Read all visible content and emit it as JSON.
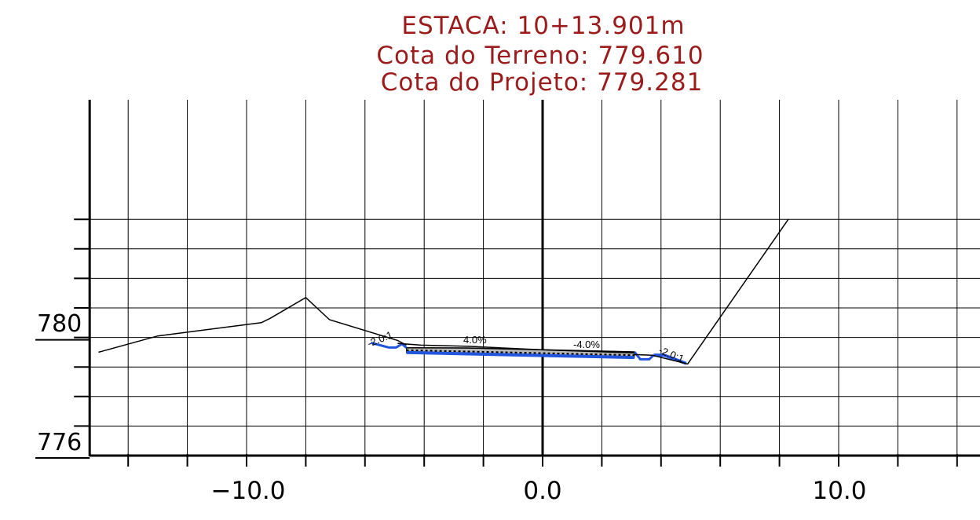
{
  "header": {
    "station_line": "ESTACA: 10+13.901m",
    "terrain_line": "Cota do Terreno:  779.610",
    "project_line": "Cota do Projeto: 779.281"
  },
  "x_axis": {
    "tick_labels": [
      "−10.0",
      "0.0",
      "10.0"
    ],
    "range": [
      -15,
      15
    ],
    "major_step": 2
  },
  "y_axis": {
    "tick_labels": [
      "780",
      "776"
    ],
    "range": [
      776,
      784
    ],
    "grid": true
  },
  "annotations": {
    "left_slope": "-2.0:1",
    "left_crossfall": "4.0%",
    "right_crossfall": "-4.0%",
    "right_slope": "-2.0:1"
  },
  "colors": {
    "header": "#9a1c1c",
    "grid": "#000000",
    "terrain": "#000000",
    "road_fill": "#b8b8b8",
    "road_edge": "#2255dd"
  },
  "chart_data": {
    "type": "line",
    "title": "",
    "xlabel": "",
    "ylabel": "",
    "xlim": [
      -15,
      15
    ],
    "ylim": [
      776,
      784
    ],
    "series": [
      {
        "x": [
          -15,
          -13,
          -9.5,
          -9.2,
          -8.0,
          -7.2,
          -4.9,
          -4.6
        ],
        "y": [
          779.5,
          780.05,
          780.5,
          780.65,
          781.35,
          780.6,
          779.9,
          779.74
        ]
      },
      {
        "x": [
          -4.9,
          -4.1,
          -2.5,
          0.0,
          3.1
        ],
        "y": [
          779.8,
          779.74,
          779.7,
          779.58,
          779.48
        ]
      },
      {
        "x": [
          3.1,
          3.7,
          4.9,
          8.3
        ],
        "y": [
          779.42,
          779.4,
          779.1,
          784.0
        ]
      }
    ]
  }
}
